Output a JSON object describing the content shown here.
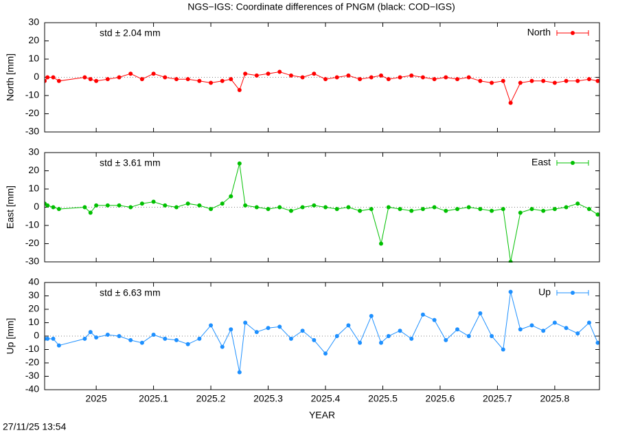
{
  "title": "NGS−IGS: Coordinate differences of PNGM (black: COD−IGS)",
  "timestamp": "27/11/25 13:54",
  "chart_data": [
    {
      "type": "line",
      "ylabel": "North [mm]",
      "annotation": "std ± 2.04 mm",
      "legend": "top-right",
      "zero_line": true,
      "x": [
        2024.91,
        2024.915,
        2024.925,
        2024.935,
        2024.98,
        2024.99,
        2025.0,
        2025.02,
        2025.04,
        2025.06,
        2025.08,
        2025.1,
        2025.12,
        2025.14,
        2025.16,
        2025.18,
        2025.2,
        2025.22,
        2025.235,
        2025.25,
        2025.26,
        2025.28,
        2025.3,
        2025.32,
        2025.34,
        2025.36,
        2025.38,
        2025.4,
        2025.42,
        2025.44,
        2025.46,
        2025.48,
        2025.497,
        2025.51,
        2025.53,
        2025.55,
        2025.57,
        2025.59,
        2025.61,
        2025.63,
        2025.65,
        2025.67,
        2025.69,
        2025.71,
        2025.723,
        2025.74,
        2025.76,
        2025.78,
        2025.8,
        2025.82,
        2025.84,
        2025.86,
        2025.875
      ],
      "series": [
        {
          "name": "North",
          "color": "#ff0000",
          "values": [
            -2,
            0,
            0,
            -2,
            0,
            -1,
            -2,
            -1,
            0,
            2,
            -1,
            2,
            0,
            -1,
            -1,
            -2,
            -3,
            -2,
            -1,
            -7,
            2,
            1,
            2,
            3,
            1,
            0,
            2,
            -1,
            0,
            1,
            -1,
            0,
            1,
            -1,
            0,
            1,
            0,
            -1,
            0,
            -1,
            0,
            -2,
            -3,
            -2,
            -14,
            -3,
            -2,
            -2,
            -3,
            -2,
            -2,
            -1,
            -2
          ]
        }
      ],
      "xlim": [
        2024.91,
        2025.878
      ],
      "xticks": [
        2025,
        2025.1,
        2025.2,
        2025.3,
        2025.4,
        2025.5,
        2025.6,
        2025.7,
        2025.8
      ],
      "ylim": [
        -30,
        30
      ],
      "yticks": [
        -30,
        -20,
        -10,
        0,
        10,
        20,
        30
      ]
    },
    {
      "type": "line",
      "ylabel": "East [mm]",
      "annotation": "std ± 3.61 mm",
      "legend": "top-right",
      "zero_line": true,
      "x": [
        2024.91,
        2024.915,
        2024.925,
        2024.935,
        2024.98,
        2024.99,
        2025.0,
        2025.02,
        2025.04,
        2025.06,
        2025.08,
        2025.1,
        2025.12,
        2025.14,
        2025.16,
        2025.18,
        2025.2,
        2025.22,
        2025.235,
        2025.25,
        2025.26,
        2025.28,
        2025.3,
        2025.32,
        2025.34,
        2025.36,
        2025.38,
        2025.4,
        2025.42,
        2025.44,
        2025.46,
        2025.48,
        2025.497,
        2025.51,
        2025.53,
        2025.55,
        2025.57,
        2025.59,
        2025.61,
        2025.63,
        2025.65,
        2025.67,
        2025.69,
        2025.71,
        2025.723,
        2025.74,
        2025.76,
        2025.78,
        2025.8,
        2025.82,
        2025.84,
        2025.86,
        2025.875
      ],
      "series": [
        {
          "name": "East",
          "color": "#00c000",
          "values": [
            2,
            1,
            0,
            -1,
            0,
            -3,
            1,
            1,
            1,
            0,
            2,
            3,
            1,
            0,
            2,
            1,
            -1,
            2,
            6,
            24,
            1,
            0,
            -1,
            0,
            -2,
            0,
            1,
            0,
            -1,
            0,
            -2,
            -1,
            -20,
            0,
            -1,
            -2,
            -1,
            0,
            -2,
            -1,
            0,
            -1,
            -2,
            -1,
            -30,
            -3,
            -1,
            -2,
            -1,
            0,
            2,
            -1,
            -4
          ]
        }
      ],
      "xlim": [
        2024.91,
        2025.878
      ],
      "xticks": [
        2025,
        2025.1,
        2025.2,
        2025.3,
        2025.4,
        2025.5,
        2025.6,
        2025.7,
        2025.8
      ],
      "ylim": [
        -30,
        30
      ],
      "yticks": [
        -30,
        -20,
        -10,
        0,
        10,
        20,
        30
      ]
    },
    {
      "type": "line",
      "ylabel": "Up [mm]",
      "xlabel": "YEAR",
      "annotation": "std ± 6.63 mm",
      "legend": "top-right",
      "zero_line": true,
      "x_tick_labels": true,
      "x": [
        2024.91,
        2024.915,
        2024.925,
        2024.935,
        2024.98,
        2024.99,
        2025.0,
        2025.02,
        2025.04,
        2025.06,
        2025.08,
        2025.1,
        2025.12,
        2025.14,
        2025.16,
        2025.18,
        2025.2,
        2025.22,
        2025.235,
        2025.25,
        2025.26,
        2025.28,
        2025.3,
        2025.32,
        2025.34,
        2025.36,
        2025.38,
        2025.4,
        2025.42,
        2025.44,
        2025.46,
        2025.48,
        2025.497,
        2025.51,
        2025.53,
        2025.55,
        2025.57,
        2025.59,
        2025.61,
        2025.63,
        2025.65,
        2025.67,
        2025.69,
        2025.71,
        2025.723,
        2025.74,
        2025.76,
        2025.78,
        2025.8,
        2025.82,
        2025.84,
        2025.86,
        2025.875
      ],
      "series": [
        {
          "name": "Up",
          "color": "#1e90ff",
          "values": [
            -2,
            -2,
            -2,
            -7,
            -2,
            3,
            -1,
            1,
            0,
            -3,
            -5,
            1,
            -2,
            -3,
            -6,
            -2,
            8,
            -8,
            5,
            -27,
            10,
            3,
            6,
            7,
            -2,
            4,
            -3,
            -13,
            0,
            8,
            -5,
            15,
            -5,
            0,
            4,
            -2,
            16,
            12,
            -3,
            5,
            0,
            17,
            0,
            -10,
            33,
            5,
            8,
            4,
            10,
            6,
            2,
            10,
            -5
          ]
        }
      ],
      "xlim": [
        2024.91,
        2025.878
      ],
      "xticks": [
        2025,
        2025.1,
        2025.2,
        2025.3,
        2025.4,
        2025.5,
        2025.6,
        2025.7,
        2025.8
      ],
      "ylim": [
        -40,
        40
      ],
      "yticks": [
        -40,
        -30,
        -20,
        -10,
        0,
        10,
        20,
        30,
        40
      ]
    }
  ]
}
